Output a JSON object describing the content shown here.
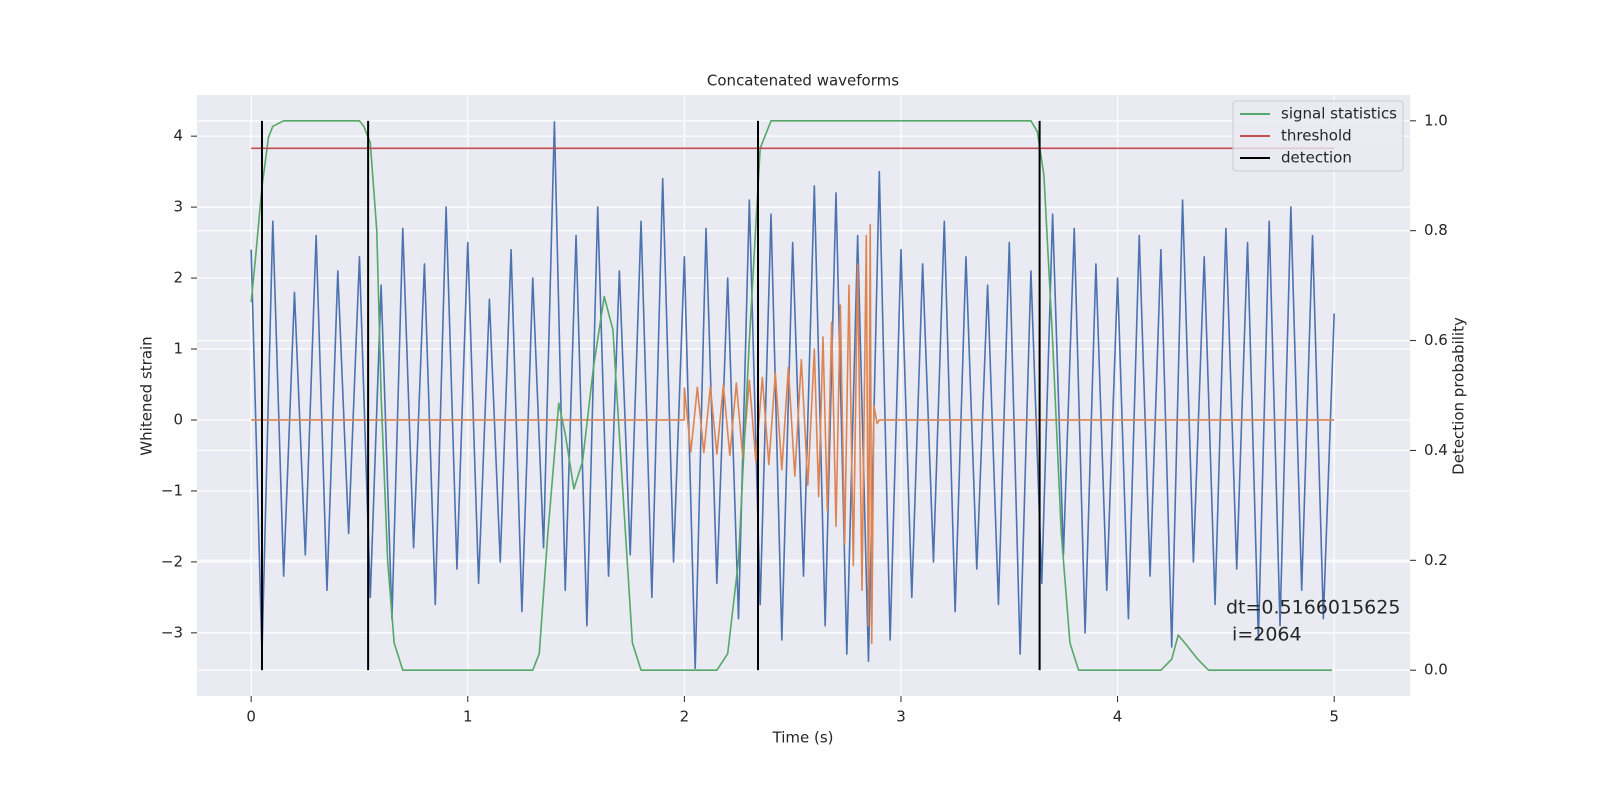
{
  "chart_data": {
    "type": "line",
    "title": "Concatenated waveforms",
    "xlabel": "Time (s)",
    "ylabel": "Whitened strain",
    "y2label": "Detection probability",
    "xlim": [
      -0.25,
      5.35
    ],
    "xticks": [
      0,
      1,
      2,
      3,
      4,
      5
    ],
    "ylim": [
      -3.89,
      4.58
    ],
    "yticks": [
      {
        "value": -3,
        "label": "−3"
      },
      {
        "value": -2,
        "label": "−2"
      },
      {
        "value": -1,
        "label": "−1"
      },
      0,
      1,
      2,
      3,
      4
    ],
    "y2lim": [
      -0.047,
      1.047
    ],
    "y2ticks": [
      {
        "value": 0,
        "label": "0.0"
      },
      0.2,
      0.4,
      0.6,
      0.8,
      {
        "value": 1,
        "label": "1.0"
      }
    ],
    "grid": true,
    "legend": "upper right",
    "series": [
      {
        "color": "#4c72b0",
        "x": [
          0,
          0.05,
          0.1,
          0.15,
          0.2,
          0.25,
          0.3,
          0.35,
          0.4,
          0.45,
          0.5,
          0.55,
          0.6,
          0.65,
          0.7,
          0.75,
          0.8,
          0.85,
          0.9,
          0.95,
          1.0,
          1.05,
          1.1,
          1.15,
          1.2,
          1.25,
          1.3,
          1.35,
          1.4,
          1.45,
          1.5,
          1.55,
          1.6,
          1.65,
          1.7,
          1.75,
          1.8,
          1.85,
          1.9,
          1.95,
          2.0,
          2.05,
          2.1,
          2.15,
          2.2,
          2.25,
          2.3,
          2.35,
          2.4,
          2.45,
          2.5,
          2.55,
          2.6,
          2.65,
          2.7,
          2.75,
          2.8,
          2.85,
          2.9,
          2.95,
          3.0,
          3.05,
          3.1,
          3.15,
          3.2,
          3.25,
          3.3,
          3.35,
          3.4,
          3.45,
          3.5,
          3.55,
          3.6,
          3.65,
          3.7,
          3.75,
          3.8,
          3.85,
          3.9,
          3.95,
          4.0,
          4.05,
          4.1,
          4.15,
          4.2,
          4.25,
          4.3,
          4.35,
          4.4,
          4.45,
          4.5,
          4.55,
          4.6,
          4.65,
          4.7,
          4.75,
          4.8,
          4.85,
          4.9,
          4.95,
          5.0
        ],
        "values": [
          2.4,
          -3.3,
          2.8,
          -2.2,
          1.8,
          -1.9,
          2.6,
          -2.4,
          2.1,
          -1.6,
          2.3,
          -2.5,
          1.9,
          -2.8,
          2.7,
          -1.8,
          2.2,
          -2.6,
          3.0,
          -2.1,
          2.5,
          -2.3,
          1.7,
          -2.0,
          2.4,
          -2.7,
          2.0,
          -1.8,
          4.2,
          -2.4,
          2.6,
          -2.9,
          3.0,
          -2.2,
          2.1,
          -1.9,
          2.8,
          -2.5,
          3.4,
          -2.0,
          2.3,
          -3.5,
          2.7,
          -2.3,
          2.0,
          -2.8,
          3.1,
          -2.6,
          2.9,
          -3.1,
          2.5,
          -2.2,
          3.3,
          -2.9,
          3.2,
          -3.3,
          2.6,
          -3.4,
          3.5,
          -3.1,
          2.4,
          -2.5,
          2.2,
          -2.0,
          2.8,
          -2.7,
          2.3,
          -2.1,
          1.9,
          -2.6,
          2.5,
          -3.3,
          2.1,
          -2.3,
          2.9,
          -1.9,
          2.7,
          -3.0,
          2.2,
          -2.4,
          2.0,
          -2.8,
          2.6,
          -2.2,
          2.4,
          -3.2,
          3.1,
          -2.0,
          2.3,
          -2.6,
          2.7,
          -2.1,
          2.5,
          -3.1,
          2.8,
          -2.9,
          3.0,
          -2.4,
          2.6,
          -2.8,
          1.5
        ]
      },
      {
        "color": "#dd8452",
        "x": [
          0,
          1.999,
          2.0,
          2.03,
          2.06,
          2.09,
          2.12,
          2.15,
          2.18,
          2.21,
          2.24,
          2.27,
          2.3,
          2.33,
          2.36,
          2.39,
          2.42,
          2.45,
          2.48,
          2.51,
          2.54,
          2.57,
          2.6,
          2.62,
          2.64,
          2.66,
          2.68,
          2.7,
          2.72,
          2.74,
          2.76,
          2.78,
          2.8,
          2.82,
          2.84,
          2.85,
          2.858,
          2.865,
          2.875,
          2.89,
          2.9,
          5.0
        ],
        "values": [
          0,
          0,
          0.45,
          -0.45,
          0.46,
          -0.46,
          0.47,
          -0.48,
          0.49,
          -0.5,
          0.52,
          -0.54,
          0.56,
          -0.58,
          0.6,
          -0.63,
          0.66,
          -0.7,
          0.74,
          -0.79,
          0.85,
          -0.92,
          1.0,
          -1.08,
          1.17,
          -1.27,
          1.38,
          -1.5,
          1.62,
          -1.75,
          1.9,
          -2.05,
          2.2,
          -2.4,
          2.6,
          -2.9,
          2.75,
          -3.15,
          0.2,
          -0.05,
          0,
          0
        ]
      },
      {
        "name": "signal statistics",
        "color": "#55a868",
        "axis": "y2",
        "x": [
          0,
          0.02,
          0.05,
          0.08,
          0.1,
          0.15,
          0.5,
          0.52,
          0.55,
          0.58,
          0.6,
          0.63,
          0.66,
          0.7,
          1.3,
          1.33,
          1.37,
          1.42,
          1.45,
          1.49,
          1.53,
          1.58,
          1.63,
          1.67,
          1.72,
          1.76,
          1.8,
          2.15,
          2.2,
          2.25,
          2.3,
          2.35,
          2.4,
          3.6,
          3.63,
          3.66,
          3.7,
          3.74,
          3.78,
          3.82,
          4.2,
          4.25,
          4.28,
          4.32,
          4.37,
          4.42,
          4.99
        ],
        "values": [
          0.67,
          0.75,
          0.88,
          0.97,
          0.99,
          1.0,
          1.0,
          0.99,
          0.96,
          0.8,
          0.5,
          0.2,
          0.05,
          0.0,
          0.0,
          0.03,
          0.25,
          0.486,
          0.43,
          0.33,
          0.38,
          0.55,
          0.68,
          0.62,
          0.3,
          0.05,
          0.0,
          0.0,
          0.03,
          0.2,
          0.6,
          0.95,
          1.0,
          1.0,
          0.98,
          0.9,
          0.6,
          0.25,
          0.05,
          0.0,
          0.0,
          0.02,
          0.064,
          0.045,
          0.02,
          0.0,
          0.0
        ]
      },
      {
        "name": "threshold",
        "color": "#c44e52",
        "axis": "y2",
        "x": [
          0,
          5
        ],
        "values": [
          0.95,
          0.95
        ]
      },
      {
        "name": "detection",
        "color": "#000000",
        "type": "vline",
        "axis": "y2",
        "x": [
          0.05,
          0.54,
          2.34,
          3.64
        ],
        "ymin": 0,
        "ymax": 1
      }
    ],
    "annotation": [
      "dt=0.5166015625",
      " i=2064"
    ]
  }
}
